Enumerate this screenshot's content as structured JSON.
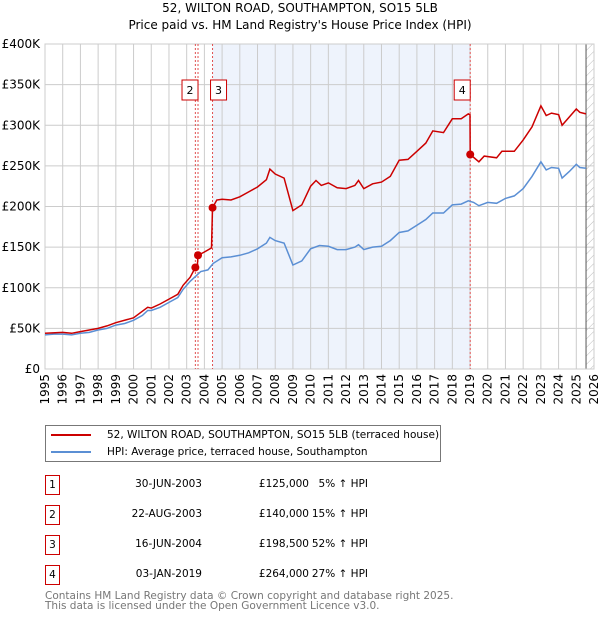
{
  "chart_data": {
    "type": "line",
    "title": "52, WILTON ROAD, SOUTHAMPTON, SO15 5LB",
    "subtitle": "Price paid vs. HM Land Registry's House Price Index (HPI)",
    "ylim": [
      0,
      400000
    ],
    "xlim": [
      1995,
      2026
    ],
    "y_ticks": [
      0,
      50000,
      100000,
      150000,
      200000,
      250000,
      300000,
      350000,
      400000
    ],
    "y_tick_labels": [
      "£0",
      "£50K",
      "£100K",
      "£150K",
      "£200K",
      "£250K",
      "£300K",
      "£350K",
      "£400K"
    ],
    "x_ticks": [
      1995,
      1996,
      1997,
      1998,
      1999,
      2000,
      2001,
      2002,
      2003,
      2004,
      2005,
      2006,
      2007,
      2008,
      2009,
      2010,
      2011,
      2012,
      2013,
      2014,
      2015,
      2016,
      2017,
      2018,
      2019,
      2020,
      2021,
      2022,
      2023,
      2024,
      2025,
      2026
    ],
    "grid": true,
    "shaded_range": [
      2004.46,
      2019.01
    ],
    "forecast_from": 2025.55,
    "series": [
      {
        "name": "52, WILTON ROAD, SOUTHAMPTON, SO15 5LB (terraced house)",
        "color": "#cc0000",
        "points": [
          [
            1995,
            44
          ],
          [
            1996,
            45
          ],
          [
            1996.5,
            44
          ],
          [
            1997,
            46
          ],
          [
            1998,
            50
          ],
          [
            1998.5,
            53
          ],
          [
            1999,
            57
          ],
          [
            2000,
            63
          ],
          [
            2000.8,
            76
          ],
          [
            2001,
            75
          ],
          [
            2001.5,
            80
          ],
          [
            2002,
            86
          ],
          [
            2002.5,
            92
          ],
          [
            2002.8,
            103
          ],
          [
            2003.2,
            113
          ],
          [
            2003.49,
            125
          ],
          [
            2003.6,
            126
          ],
          [
            2003.64,
            140
          ],
          [
            2004,
            144
          ],
          [
            2004.4,
            149
          ],
          [
            2004.46,
            198.5
          ],
          [
            2004.7,
            208
          ],
          [
            2005,
            209
          ],
          [
            2005.5,
            208
          ],
          [
            2006,
            212
          ],
          [
            2006.5,
            218
          ],
          [
            2007,
            224
          ],
          [
            2007.5,
            233
          ],
          [
            2007.7,
            246
          ],
          [
            2008,
            240
          ],
          [
            2008.5,
            235
          ],
          [
            2009,
            195
          ],
          [
            2009.5,
            202
          ],
          [
            2010,
            225
          ],
          [
            2010.3,
            232
          ],
          [
            2010.6,
            226
          ],
          [
            2011,
            229
          ],
          [
            2011.5,
            223
          ],
          [
            2012,
            222
          ],
          [
            2012.5,
            226
          ],
          [
            2012.7,
            232
          ],
          [
            2013,
            222
          ],
          [
            2013.5,
            228
          ],
          [
            2014,
            230
          ],
          [
            2014.5,
            237
          ],
          [
            2015,
            257
          ],
          [
            2015.5,
            258
          ],
          [
            2016,
            268
          ],
          [
            2016.5,
            278
          ],
          [
            2016.9,
            293
          ],
          [
            2017.5,
            291
          ],
          [
            2018,
            308
          ],
          [
            2018.5,
            308
          ],
          [
            2018.9,
            314
          ],
          [
            2019,
            313
          ],
          [
            2019.01,
            264
          ],
          [
            2019.5,
            255
          ],
          [
            2019.8,
            262
          ],
          [
            2020.5,
            260
          ],
          [
            2020.8,
            268
          ],
          [
            2021.5,
            268
          ],
          [
            2022,
            282
          ],
          [
            2022.5,
            298
          ],
          [
            2023,
            324
          ],
          [
            2023.3,
            312
          ],
          [
            2023.6,
            315
          ],
          [
            2024,
            313
          ],
          [
            2024.2,
            300
          ],
          [
            2024.6,
            310
          ],
          [
            2025,
            320
          ],
          [
            2025.2,
            316
          ],
          [
            2025.55,
            314
          ]
        ]
      },
      {
        "name": "HPI: Average price, terraced house, Southampton",
        "color": "#5b8fd4",
        "points": [
          [
            1995,
            42
          ],
          [
            1995.5,
            43
          ],
          [
            1996,
            43
          ],
          [
            1996.5,
            42
          ],
          [
            1997,
            44
          ],
          [
            1997.5,
            45
          ],
          [
            1998,
            48
          ],
          [
            1998.5,
            50
          ],
          [
            1999,
            54
          ],
          [
            1999.5,
            56
          ],
          [
            2000,
            60
          ],
          [
            2000.5,
            66
          ],
          [
            2000.8,
            72
          ],
          [
            2001,
            72
          ],
          [
            2001.5,
            76
          ],
          [
            2002,
            82
          ],
          [
            2002.5,
            88
          ],
          [
            2002.8,
            98
          ],
          [
            2003.2,
            108
          ],
          [
            2003.5,
            114
          ],
          [
            2003.8,
            120
          ],
          [
            2004.2,
            122
          ],
          [
            2004.5,
            130
          ],
          [
            2005,
            137
          ],
          [
            2005.5,
            138
          ],
          [
            2006,
            140
          ],
          [
            2006.5,
            143
          ],
          [
            2007,
            148
          ],
          [
            2007.5,
            155
          ],
          [
            2007.7,
            162
          ],
          [
            2008,
            158
          ],
          [
            2008.5,
            155
          ],
          [
            2009,
            128
          ],
          [
            2009.5,
            133
          ],
          [
            2010,
            148
          ],
          [
            2010.5,
            152
          ],
          [
            2011,
            151
          ],
          [
            2011.5,
            147
          ],
          [
            2012,
            147
          ],
          [
            2012.5,
            150
          ],
          [
            2012.7,
            153
          ],
          [
            2013,
            147
          ],
          [
            2013.5,
            150
          ],
          [
            2014,
            151
          ],
          [
            2014.5,
            158
          ],
          [
            2015,
            168
          ],
          [
            2015.5,
            170
          ],
          [
            2016,
            177
          ],
          [
            2016.5,
            184
          ],
          [
            2016.9,
            192
          ],
          [
            2017.5,
            192
          ],
          [
            2018,
            202
          ],
          [
            2018.5,
            203
          ],
          [
            2018.9,
            207
          ],
          [
            2019.2,
            205
          ],
          [
            2019.5,
            201
          ],
          [
            2020,
            205
          ],
          [
            2020.5,
            204
          ],
          [
            2021,
            210
          ],
          [
            2021.5,
            213
          ],
          [
            2022,
            222
          ],
          [
            2022.5,
            237
          ],
          [
            2023,
            255
          ],
          [
            2023.3,
            245
          ],
          [
            2023.6,
            248
          ],
          [
            2024,
            247
          ],
          [
            2024.2,
            235
          ],
          [
            2024.6,
            243
          ],
          [
            2025,
            252
          ],
          [
            2025.2,
            248
          ],
          [
            2025.55,
            247
          ]
        ]
      }
    ],
    "transactions": [
      {
        "id": "1",
        "date": "30-JUN-2003",
        "year": 2003.49,
        "price": "£125,000",
        "value": 125,
        "hpi": "5% ↑ HPI",
        "show_label": false
      },
      {
        "id": "2",
        "date": "22-AUG-2003",
        "year": 2003.64,
        "price": "£140,000",
        "value": 140,
        "hpi": "15% ↑ HPI",
        "show_label": true
      },
      {
        "id": "3",
        "date": "16-JUN-2004",
        "year": 2004.46,
        "price": "£198,500",
        "value": 198.5,
        "hpi": "52% ↑ HPI",
        "show_label": true
      },
      {
        "id": "4",
        "date": "03-JAN-2019",
        "year": 2019.01,
        "price": "£264,000",
        "value": 264,
        "hpi": "27% ↑ HPI",
        "show_label": true
      }
    ],
    "value_unit": "thousands GBP"
  },
  "legend": {
    "property": "52, WILTON ROAD, SOUTHAMPTON, SO15 5LB (terraced house)",
    "hpi": "HPI: Average price, terraced house, Southampton"
  },
  "footer": {
    "line1": "Contains HM Land Registry data © Crown copyright and database right 2025.",
    "line2": "This data is licensed under the Open Government Licence v3.0."
  }
}
